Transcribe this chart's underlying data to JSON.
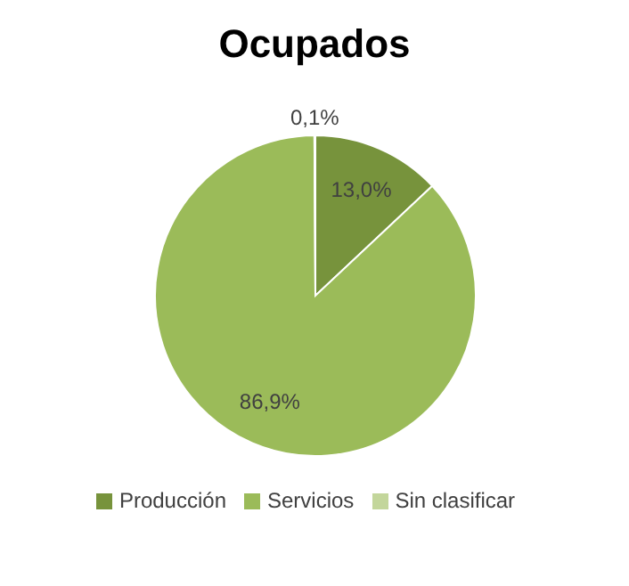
{
  "chart_data": {
    "type": "pie",
    "title": "Ocupados",
    "categories": [
      "Producción",
      "Servicios",
      "Sin clasificar"
    ],
    "values": [
      13.0,
      86.9,
      0.1
    ],
    "colors": [
      "#77933c",
      "#9bbb59",
      "#c3d69b"
    ],
    "value_labels": [
      "13,0%",
      "86,9%",
      "0,1%"
    ],
    "legend": "bottom"
  }
}
